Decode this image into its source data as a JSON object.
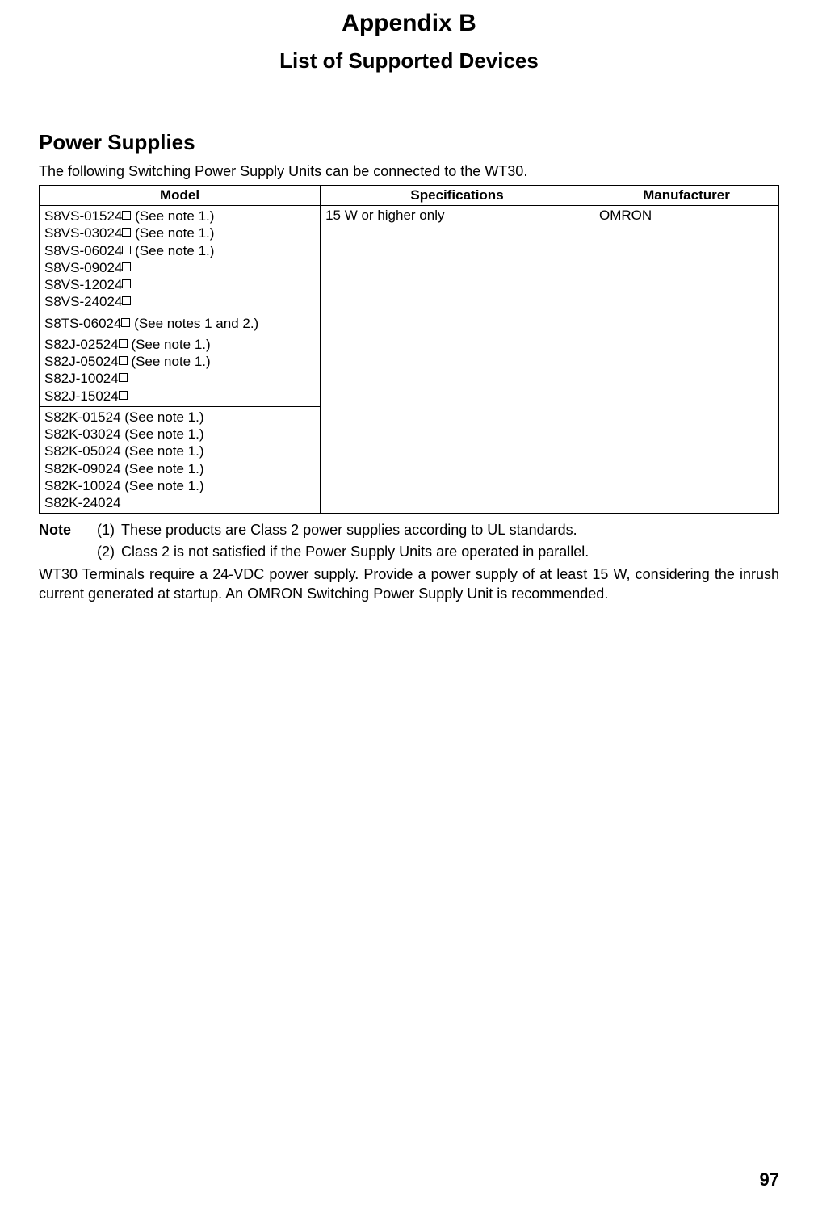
{
  "title": "Appendix B",
  "subtitle": "List of Supported Devices",
  "section_heading": "Power Supplies",
  "intro_text": "The following Switching Power Supply Units can be connected to the WT30.",
  "table": {
    "headers": [
      "Model",
      "Specifications",
      "Manufacturer"
    ],
    "specification": "15 W or higher only",
    "manufacturer": "OMRON",
    "groups": [
      [
        {
          "model": "S8VS-01524",
          "box": true,
          "note": " (See note 1.)"
        },
        {
          "model": "S8VS-03024",
          "box": true,
          "note": " (See note 1.)"
        },
        {
          "model": "S8VS-06024",
          "box": true,
          "note": " (See note 1.)"
        },
        {
          "model": "S8VS-09024",
          "box": true,
          "note": ""
        },
        {
          "model": "S8VS-12024",
          "box": true,
          "note": ""
        },
        {
          "model": "S8VS-24024",
          "box": true,
          "note": ""
        }
      ],
      [
        {
          "model": "S8TS-06024",
          "box": true,
          "note": " (See notes 1 and 2.)"
        }
      ],
      [
        {
          "model": "S82J-02524",
          "box": true,
          "note": " (See note 1.)"
        },
        {
          "model": "S82J-05024",
          "box": true,
          "note": " (See note 1.)"
        },
        {
          "model": "S82J-10024",
          "box": true,
          "note": ""
        },
        {
          "model": "S82J-15024",
          "box": true,
          "note": ""
        }
      ],
      [
        {
          "model": "S82K-01524",
          "box": false,
          "note": " (See note 1.)"
        },
        {
          "model": "S82K-03024",
          "box": false,
          "note": " (See note 1.)"
        },
        {
          "model": "S82K-05024",
          "box": false,
          "note": " (See note 1.)"
        },
        {
          "model": "S82K-09024",
          "box": false,
          "note": " (See note 1.)"
        },
        {
          "model": "S82K-10024",
          "box": false,
          "note": " (See note 1.)"
        },
        {
          "model": "S82K-24024",
          "box": false,
          "note": ""
        }
      ]
    ]
  },
  "note_label": "Note",
  "notes": [
    {
      "num": "(1)",
      "text": "These products are Class 2 power supplies according to UL standards."
    },
    {
      "num": "(2)",
      "text": "Class 2 is not satisfied if the Power Supply Units are operated in parallel."
    }
  ],
  "body_paragraph": "WT30 Terminals require a 24-VDC power supply. Provide a power supply of at least 15 W, considering the inrush current generated at startup. An OMRON Switching Power Supply Unit is recommended.",
  "page_number": "97"
}
